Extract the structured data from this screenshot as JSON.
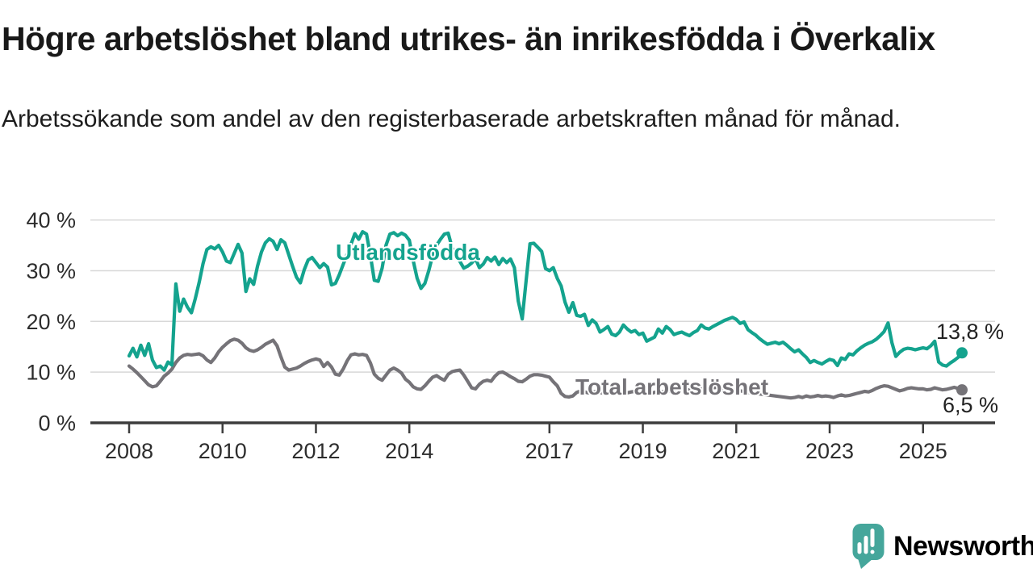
{
  "page": {
    "title": "Högre arbetslöshet bland utrikes- än inrikesfödda i Överkalix",
    "subtitle": "Arbetssökande som andel av den registerbaserade arbetskraften månad för månad."
  },
  "chart_data": {
    "type": "line",
    "title": "Högre arbetslöshet bland utrikes- än inrikesfödda i Överkalix",
    "subtitle": "Arbetssökande som andel av den registerbaserade arbetskraften månad för månad.",
    "unit": "%",
    "frequency": "monthly",
    "start_month": "2008-01",
    "end_month": "2025-11",
    "grid": "horizontal",
    "y_axis": {
      "min": 0,
      "max": 40,
      "ticks": [
        {
          "value": 0,
          "label": "0 %"
        },
        {
          "value": 10,
          "label": "10 %"
        },
        {
          "value": 20,
          "label": "20 %"
        },
        {
          "value": 30,
          "label": "30 %"
        },
        {
          "value": 40,
          "label": "40 %"
        }
      ]
    },
    "x_axis": {
      "ticks": [
        {
          "year": 2008,
          "label": "2008"
        },
        {
          "year": 2010,
          "label": "2010"
        },
        {
          "year": 2012,
          "label": "2012"
        },
        {
          "year": 2014,
          "label": "2014"
        },
        {
          "year": 2017,
          "label": "2017"
        },
        {
          "year": 2019,
          "label": "2019"
        },
        {
          "year": 2021,
          "label": "2021"
        },
        {
          "year": 2023,
          "label": "2023"
        },
        {
          "year": 2025,
          "label": "2025"
        }
      ]
    },
    "series": [
      {
        "name": "Utlandsfödda",
        "color": "#14A38E",
        "end_label": "13,8 %",
        "end_value": 13.8,
        "values": [
          13.2,
          14.7,
          13.0,
          15.3,
          13.3,
          15.6,
          12.4,
          10.9,
          11.2,
          10.4,
          12.0,
          11.4,
          27.4,
          22.0,
          24.4,
          22.8,
          21.7,
          24.5,
          27.7,
          31.4,
          34.2,
          34.7,
          34.3,
          35.0,
          33.7,
          31.9,
          31.6,
          33.4,
          35.2,
          33.5,
          25.9,
          28.4,
          27.3,
          30.9,
          33.7,
          35.5,
          36.3,
          35.8,
          34.2,
          36.1,
          35.5,
          33.2,
          30.9,
          28.7,
          27.6,
          30.2,
          32.1,
          32.6,
          31.6,
          30.6,
          31.4,
          30.7,
          27.2,
          27.5,
          29.2,
          31.2,
          33.2,
          35.2,
          37.3,
          36.2,
          37.7,
          37.2,
          33.0,
          28.1,
          27.9,
          30.5,
          35.0,
          37.2,
          37.5,
          36.9,
          37.4,
          37.0,
          36.0,
          32.0,
          28.5,
          26.5,
          27.5,
          30.0,
          33.0,
          35.0,
          36.2,
          37.2,
          37.4,
          34.5,
          33.0,
          31.8,
          30.5,
          30.9,
          31.5,
          32.4,
          30.6,
          31.3,
          32.6,
          31.9,
          32.7,
          31.2,
          32.4,
          31.6,
          32.3,
          30.6,
          24.0,
          20.5,
          28.0,
          35.3,
          35.4,
          34.6,
          33.8,
          30.4,
          30.0,
          30.6,
          28.5,
          27.0,
          23.8,
          21.8,
          23.7,
          21.2,
          21.0,
          21.4,
          19.2,
          20.3,
          19.6,
          17.9,
          18.4,
          19.0,
          17.5,
          17.2,
          17.9,
          19.3,
          18.5,
          17.9,
          18.2,
          17.4,
          17.7,
          16.1,
          16.5,
          16.9,
          18.5,
          17.7,
          19.0,
          18.4,
          17.4,
          17.7,
          17.9,
          17.5,
          17.2,
          17.8,
          18.2,
          19.3,
          18.7,
          18.5,
          19.0,
          19.4,
          19.8,
          20.2,
          20.5,
          20.8,
          20.4,
          19.6,
          19.9,
          18.4,
          17.8,
          17.3,
          16.6,
          16.0,
          15.5,
          15.7,
          15.9,
          15.6,
          15.9,
          15.3,
          14.6,
          14.0,
          14.4,
          13.6,
          12.9,
          11.9,
          12.3,
          11.9,
          11.6,
          12.1,
          12.5,
          12.3,
          11.3,
          12.8,
          12.5,
          13.6,
          13.4,
          14.2,
          14.8,
          15.3,
          15.7,
          16.0,
          16.5,
          17.2,
          18.0,
          19.7,
          15.8,
          13.1,
          13.9,
          14.5,
          14.7,
          14.6,
          14.4,
          14.6,
          14.8,
          14.6,
          15.2,
          16.1,
          12.0,
          11.4,
          11.2,
          11.8,
          12.3,
          12.9,
          13.8
        ]
      },
      {
        "name": "Total arbetslöshet",
        "color": "#757378",
        "end_label": "6,5 %",
        "end_value": 6.5,
        "values": [
          11.2,
          10.6,
          9.9,
          9.1,
          8.3,
          7.5,
          7.1,
          7.3,
          8.2,
          9.2,
          9.8,
          10.6,
          11.9,
          12.8,
          13.3,
          13.5,
          13.4,
          13.5,
          13.6,
          13.2,
          12.4,
          11.9,
          12.8,
          14.0,
          14.9,
          15.6,
          16.2,
          16.5,
          16.3,
          15.7,
          14.8,
          14.3,
          14.1,
          14.4,
          14.9,
          15.5,
          15.9,
          16.3,
          15.2,
          13.0,
          11.0,
          10.4,
          10.6,
          10.8,
          11.2,
          11.7,
          12.1,
          12.4,
          12.6,
          12.4,
          11.1,
          11.9,
          11.0,
          9.6,
          9.4,
          10.6,
          12.2,
          13.4,
          13.6,
          13.4,
          13.5,
          13.3,
          11.8,
          9.6,
          8.8,
          8.4,
          9.4,
          10.4,
          10.8,
          10.4,
          9.8,
          8.6,
          8.0,
          7.1,
          6.7,
          6.6,
          7.3,
          8.2,
          9.0,
          9.3,
          8.8,
          8.4,
          9.6,
          10.1,
          10.3,
          10.4,
          9.4,
          8.2,
          6.9,
          6.7,
          7.6,
          8.2,
          8.4,
          8.2,
          9.2,
          9.9,
          10.0,
          9.6,
          9.1,
          8.7,
          8.2,
          8.1,
          8.6,
          9.2,
          9.5,
          9.5,
          9.4,
          9.2,
          9.0,
          8.1,
          7.3,
          5.8,
          5.2,
          5.1,
          5.3,
          6.0,
          6.3,
          6.1,
          5.9,
          6.0,
          6.2,
          6.0,
          5.8,
          5.7,
          5.9,
          6.1,
          6.0,
          5.8,
          5.9,
          6.1,
          6.2,
          6.0,
          6.1,
          5.9,
          5.8,
          6.0,
          6.2,
          6.1,
          6.3,
          6.2,
          6.0,
          6.1,
          6.3,
          6.4,
          6.5,
          6.6,
          6.8,
          7.0,
          6.9,
          6.8,
          6.9,
          7.0,
          6.8,
          6.7,
          6.6,
          6.5,
          6.4,
          6.3,
          6.2,
          6.0,
          5.9,
          5.8,
          5.7,
          5.6,
          5.5,
          5.4,
          5.3,
          5.2,
          5.1,
          5.0,
          4.9,
          5.0,
          5.2,
          5.0,
          5.3,
          5.1,
          5.2,
          5.4,
          5.2,
          5.3,
          5.2,
          5.0,
          5.3,
          5.5,
          5.3,
          5.4,
          5.6,
          5.8,
          6.0,
          6.2,
          6.1,
          6.4,
          6.8,
          7.1,
          7.3,
          7.2,
          6.9,
          6.6,
          6.3,
          6.5,
          6.8,
          6.9,
          6.8,
          6.7,
          6.7,
          6.5,
          6.6,
          6.9,
          6.7,
          6.5,
          6.6,
          6.8,
          7.0,
          6.8,
          6.5
        ]
      }
    ]
  },
  "branding": {
    "logo_text": "Newsworthy",
    "brand_color": "#3EA79C"
  }
}
